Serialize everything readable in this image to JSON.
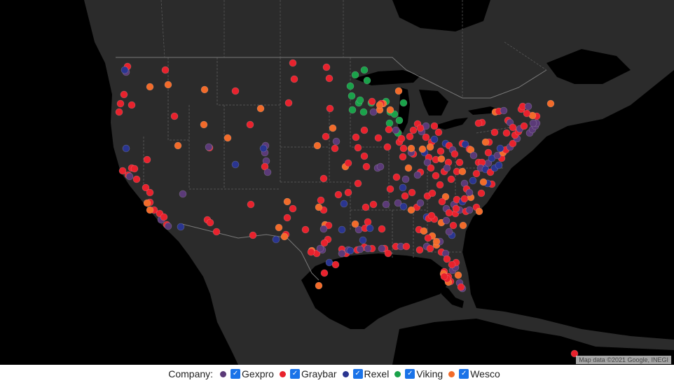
{
  "attribution": "Map data ©2021 Google, INEGI",
  "legend": {
    "title": "Company:",
    "items": [
      {
        "label": "Gexpro",
        "color": "#5b3a78",
        "checked": true
      },
      {
        "label": "Graybar",
        "color": "#e8222d",
        "checked": true
      },
      {
        "label": "Rexel",
        "color": "#2a3590",
        "checked": true
      },
      {
        "label": "Viking",
        "color": "#1aa24a",
        "checked": true
      },
      {
        "label": "Wesco",
        "color": "#f26b2a",
        "checked": true
      }
    ]
  },
  "map": {
    "land_color": "#2b2b2b",
    "border_color": "#6a6a6a",
    "water_color": "#000000"
  }
}
